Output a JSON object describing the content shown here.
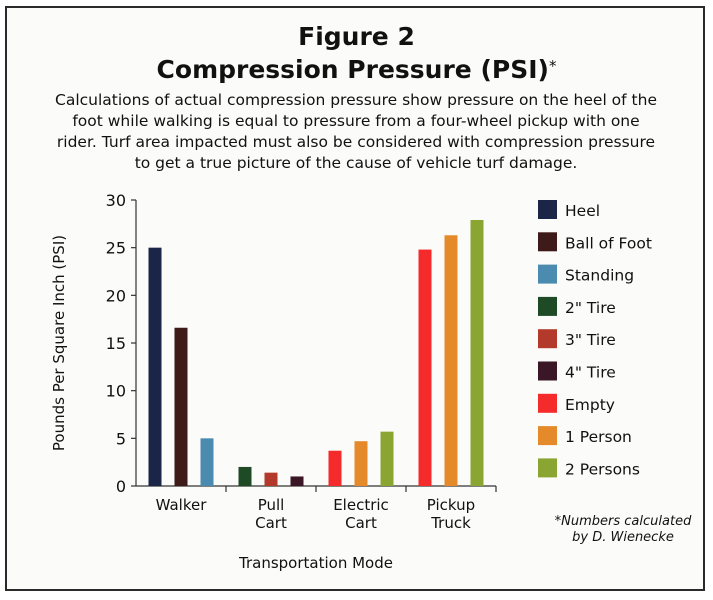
{
  "title": "Figure 2",
  "subtitle": "Compression Pressure (PSI)",
  "subtitle_mark": "*",
  "description": "Calculations of actual compression pressure show pressure on the heel of the foot while walking is equal to pressure from a four-wheel pickup with one rider. Turf area impacted must also be considered with compression pressure to get a true picture of the cause of vehicle turf damage.",
  "footnote_line1": "*Numbers calculated",
  "footnote_line2": "by D. Wienecke",
  "chart_data": {
    "type": "bar",
    "xlabel": "Transportation Mode",
    "ylabel": "Pounds Per Square Inch (PSI)",
    "ylim": [
      0,
      30
    ],
    "yticks": [
      0,
      5,
      10,
      15,
      20,
      25,
      30
    ],
    "grid": false,
    "legend_position": "right",
    "groups": [
      {
        "label_lines": [
          "Walker"
        ],
        "bars": [
          {
            "series": "Heel",
            "value": 25
          },
          {
            "series": "Ball of Foot",
            "value": 16.6
          },
          {
            "series": "Standing",
            "value": 5
          }
        ]
      },
      {
        "label_lines": [
          "Pull",
          "Cart"
        ],
        "bars": [
          {
            "series": "2\" Tire",
            "value": 2
          },
          {
            "series": "3\" Tire",
            "value": 1.4
          },
          {
            "series": "4\" Tire",
            "value": 1
          }
        ]
      },
      {
        "label_lines": [
          "Electric",
          "Cart"
        ],
        "bars": [
          {
            "series": "Empty",
            "value": 3.7
          },
          {
            "series": "1 Person",
            "value": 4.7
          },
          {
            "series": "2 Persons",
            "value": 5.7
          }
        ]
      },
      {
        "label_lines": [
          "Pickup",
          "Truck"
        ],
        "bars": [
          {
            "series": "Empty",
            "value": 24.8
          },
          {
            "series": "1 Person",
            "value": 26.3
          },
          {
            "series": "2 Persons",
            "value": 27.9
          }
        ]
      }
    ],
    "series": [
      {
        "name": "Heel",
        "color": "#1b2548"
      },
      {
        "name": "Ball of Foot",
        "color": "#3e1a18"
      },
      {
        "name": "Standing",
        "color": "#4b8bb0"
      },
      {
        "name": "2\" Tire",
        "color": "#1f4a26"
      },
      {
        "name": "3\" Tire",
        "color": "#b33a2a"
      },
      {
        "name": "4\" Tire",
        "color": "#3a1626"
      },
      {
        "name": "Empty",
        "color": "#f52a2a"
      },
      {
        "name": "1 Person",
        "color": "#e48a2a"
      },
      {
        "name": "2 Persons",
        "color": "#8aa531"
      }
    ]
  }
}
